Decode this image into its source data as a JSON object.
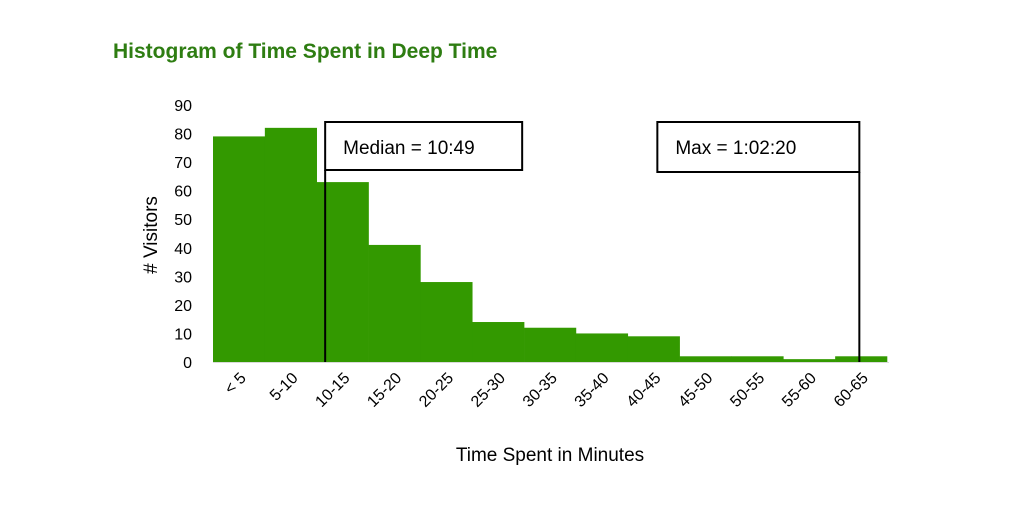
{
  "chart_data": {
    "type": "bar",
    "title": "Histogram of Time Spent in Deep Time",
    "xlabel": "Time Spent in Minutes",
    "ylabel": "# Visitors",
    "categories": [
      "< 5",
      "5-10",
      "10-15",
      "15-20",
      "20-25",
      "25-30",
      "30-35",
      "35-40",
      "40-45",
      "45-50",
      "50-55",
      "55-60",
      "60-65"
    ],
    "values": [
      79,
      82,
      63,
      41,
      28,
      14,
      12,
      10,
      9,
      2,
      2,
      1,
      2
    ],
    "ylim": [
      0,
      90
    ],
    "yticks": [
      0,
      10,
      20,
      30,
      40,
      50,
      60,
      70,
      80,
      90
    ],
    "grid": false,
    "bar_color": "#339900",
    "title_color": "#2e7d12",
    "annotations": [
      {
        "label": "Median = 10:49",
        "x_minutes": 10.817
      },
      {
        "label": "Max = 1:02:20",
        "x_minutes": 62.333
      }
    ]
  }
}
